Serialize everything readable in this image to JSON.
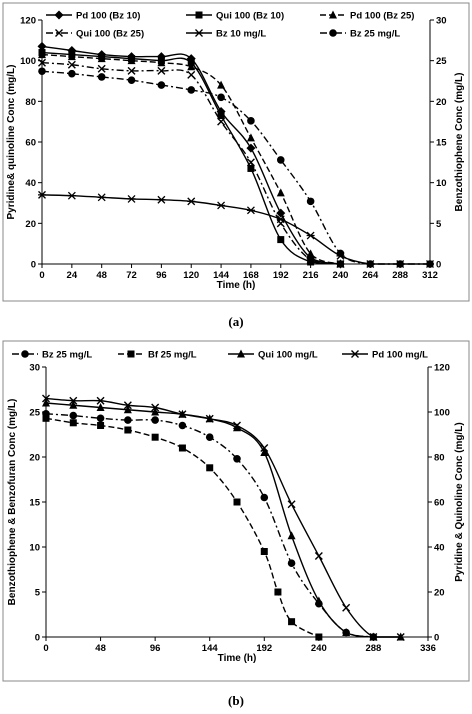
{
  "panel_labels": {
    "a": "(a)",
    "b": "(b)"
  },
  "chart_data": [
    {
      "type": "line",
      "panel": "(a)",
      "xlabel": "Time (h)",
      "ylabel_left": "Pyridine& quinoline Conc (mg/L)",
      "ylabel_right": "Benzothiophene Conc (mg/L)",
      "xlim": [
        0,
        312
      ],
      "ylim_left": [
        0,
        120
      ],
      "ylim_right": [
        0,
        30
      ],
      "xticks": [
        0,
        24,
        48,
        72,
        96,
        120,
        144,
        168,
        192,
        216,
        240,
        264,
        288,
        312
      ],
      "yticks_left": [
        0,
        20,
        40,
        60,
        80,
        100,
        120
      ],
      "yticks_right": [
        0,
        5,
        10,
        15,
        20,
        25,
        30
      ],
      "grid": false,
      "legend_position": "top",
      "series": [
        {
          "name": "Pd 100 (Bz 10)",
          "axis": "left",
          "marker": "diamond",
          "dash": "solid",
          "x": [
            0,
            24,
            48,
            72,
            96,
            120,
            144,
            168,
            192,
            216,
            240
          ],
          "y": [
            107,
            105,
            103,
            102,
            102,
            101,
            75,
            57,
            25,
            3,
            0
          ]
        },
        {
          "name": "Qui 100 (Bz 10)",
          "axis": "left",
          "marker": "square",
          "dash": "solid",
          "x": [
            0,
            24,
            48,
            72,
            96,
            120,
            144,
            168,
            192,
            216,
            240
          ],
          "y": [
            104,
            103,
            102,
            101,
            100,
            99,
            73,
            47,
            12,
            1,
            0
          ]
        },
        {
          "name": "Pd 100 (Bz 25)",
          "axis": "left",
          "marker": "triangle",
          "dash": "dashed",
          "x": [
            0,
            24,
            48,
            72,
            96,
            120,
            144,
            168,
            192,
            216,
            240
          ],
          "y": [
            103,
            102,
            101,
            100,
            99,
            97,
            88,
            62,
            35,
            5,
            0
          ]
        },
        {
          "name": "Qui 100 (Bz 25)",
          "axis": "left",
          "marker": "x",
          "dash": "dashdot",
          "x": [
            0,
            24,
            48,
            72,
            96,
            120,
            144,
            168,
            192,
            216,
            240
          ],
          "y": [
            99,
            98,
            96,
            95,
            95,
            93,
            70,
            50,
            20,
            2,
            0
          ]
        },
        {
          "name": "Bz 10 mg/L",
          "axis": "right",
          "marker": "star",
          "dash": "solid",
          "x": [
            0,
            24,
            48,
            72,
            96,
            120,
            144,
            168,
            192,
            216,
            240,
            264,
            288,
            312
          ],
          "y": [
            8.5,
            8.4,
            8.2,
            8.0,
            7.9,
            7.7,
            7.2,
            6.6,
            5.5,
            3.5,
            1.0,
            0,
            0,
            0
          ]
        },
        {
          "name": "Bz 25 mg/L",
          "axis": "right",
          "marker": "circle",
          "dash": "dashdot",
          "x": [
            0,
            24,
            48,
            72,
            96,
            120,
            144,
            168,
            192,
            216,
            240,
            264,
            288,
            312
          ],
          "y": [
            23.7,
            23.4,
            23.0,
            22.6,
            22.0,
            21.4,
            20.5,
            17.6,
            12.8,
            7.7,
            1.3,
            0,
            0,
            0
          ]
        }
      ]
    },
    {
      "type": "line",
      "panel": "(b)",
      "xlabel": "Time (h)",
      "ylabel_left": "Benzothiophene & Benzofuran Conc (mg/L)",
      "ylabel_right": "Pyridine & Quinoline Conc (mg/L)",
      "xlim": [
        0,
        336
      ],
      "ylim_left": [
        0,
        30
      ],
      "ylim_right": [
        0,
        120
      ],
      "xticks": [
        0,
        48,
        96,
        144,
        192,
        240,
        288,
        336
      ],
      "yticks_left": [
        0,
        5,
        10,
        15,
        20,
        25,
        30
      ],
      "yticks_right": [
        0,
        20,
        40,
        60,
        80,
        100,
        120
      ],
      "grid": false,
      "legend_position": "top",
      "series": [
        {
          "name": "Bz 25 mg/L",
          "axis": "left",
          "marker": "circle",
          "dash": "dashdot",
          "x": [
            0,
            24,
            48,
            72,
            96,
            120,
            144,
            168,
            192,
            216,
            240,
            264,
            288
          ],
          "y": [
            24.8,
            24.6,
            24.3,
            24.1,
            24.1,
            23.5,
            22.2,
            19.8,
            15.5,
            8.2,
            3.7,
            0.5,
            0
          ]
        },
        {
          "name": "Bf 25 mg/L",
          "axis": "left",
          "marker": "square",
          "dash": "dashed",
          "x": [
            0,
            24,
            48,
            72,
            96,
            120,
            144,
            168,
            192,
            204,
            216,
            240
          ],
          "y": [
            24.3,
            23.8,
            23.5,
            23.0,
            22.2,
            21.0,
            18.8,
            15.0,
            9.5,
            5.0,
            1.7,
            0
          ]
        },
        {
          "name": "Qui 100 mg/L",
          "axis": "right",
          "marker": "triangle",
          "dash": "solid",
          "x": [
            0,
            24,
            48,
            72,
            96,
            120,
            144,
            168,
            192,
            216,
            240,
            264,
            288,
            312
          ],
          "y": [
            104,
            103,
            102,
            101,
            100,
            99,
            97,
            93,
            82,
            45,
            16,
            2,
            0,
            0
          ]
        },
        {
          "name": "Pd 100 mg/L",
          "axis": "right",
          "marker": "x",
          "dash": "solid",
          "x": [
            0,
            24,
            48,
            72,
            96,
            120,
            144,
            168,
            192,
            216,
            240,
            264,
            288,
            312
          ],
          "y": [
            106,
            105,
            105,
            103,
            102,
            99,
            97,
            94,
            84,
            59,
            36,
            13,
            0,
            0
          ]
        }
      ]
    }
  ]
}
